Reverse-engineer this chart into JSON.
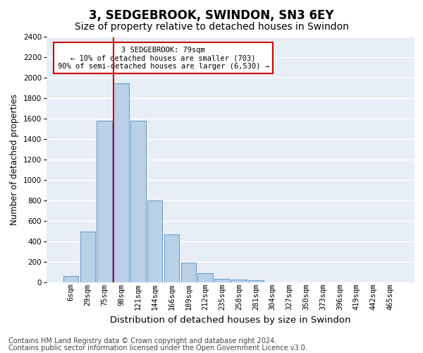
{
  "title": "3, SEDGEBROOK, SWINDON, SN3 6EY",
  "subtitle": "Size of property relative to detached houses in Swindon",
  "xlabel": "Distribution of detached houses by size in Swindon",
  "ylabel": "Number of detached properties",
  "bar_values": [
    60,
    500,
    1580,
    1950,
    1580,
    800,
    470,
    195,
    90,
    35,
    25,
    20,
    0,
    0,
    0,
    0,
    0,
    0,
    0,
    0
  ],
  "bar_labels": [
    "6sqm",
    "29sqm",
    "75sqm",
    "98sqm",
    "121sqm",
    "144sqm",
    "166sqm",
    "189sqm",
    "212sqm",
    "235sqm",
    "258sqm",
    "281sqm",
    "304sqm",
    "327sqm",
    "350sqm",
    "373sqm",
    "396sqm",
    "419sqm",
    "442sqm",
    "465sqm"
  ],
  "bar_color": "#b8d0e8",
  "bar_edge_color": "#6699cc",
  "background_color": "#e8eef5",
  "grid_color": "#ffffff",
  "marker_bin_index": 3,
  "marker_color": "#cc0000",
  "annotation_text": "3 SEDGEBROOK: 79sqm\n← 10% of detached houses are smaller (703)\n90% of semi-detached houses are larger (6,530) →",
  "annotation_box_color": "#ffffff",
  "annotation_box_edge": "#cc0000",
  "ylim": [
    0,
    2400
  ],
  "yticks": [
    0,
    200,
    400,
    600,
    800,
    1000,
    1200,
    1400,
    1600,
    1800,
    2000,
    2200,
    2400
  ],
  "footer_line1": "Contains HM Land Registry data © Crown copyright and database right 2024.",
  "footer_line2": "Contains public sector information licensed under the Open Government Licence v3.0.",
  "title_fontsize": 12,
  "subtitle_fontsize": 10,
  "xlabel_fontsize": 9.5,
  "ylabel_fontsize": 8.5,
  "tick_fontsize": 7.5,
  "annotation_fontsize": 7.5,
  "footer_fontsize": 7.0
}
